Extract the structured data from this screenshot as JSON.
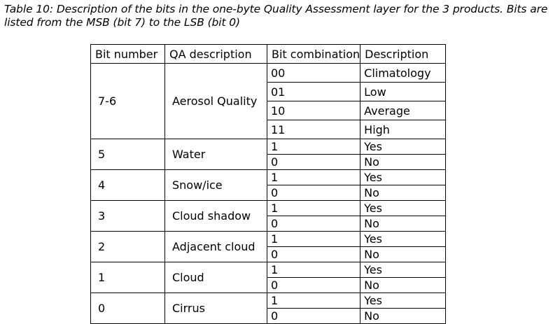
{
  "caption": "Table 10: Description of the bits in the one-byte Quality Assessment layer for the 3 products. Bits are listed from the MSB (bit 7) to the LSB (bit 0)",
  "table": {
    "headers": [
      "Bit number",
      "QA description",
      "Bit combination",
      "Description"
    ],
    "groups": [
      {
        "bit": "7-6",
        "qa": "Aerosol Quality",
        "rows": [
          {
            "code": "00",
            "desc": "Climatology"
          },
          {
            "code": "01",
            "desc": "Low"
          },
          {
            "code": "10",
            "desc": "Average"
          },
          {
            "code": "11",
            "desc": "High"
          }
        ]
      },
      {
        "bit": "5",
        "qa": "Water",
        "rows": [
          {
            "code": "1",
            "desc": "Yes"
          },
          {
            "code": "0",
            "desc": "No"
          }
        ]
      },
      {
        "bit": "4",
        "qa": "Snow/ice",
        "rows": [
          {
            "code": "1",
            "desc": "Yes"
          },
          {
            "code": "0",
            "desc": "No"
          }
        ]
      },
      {
        "bit": "3",
        "qa": "Cloud shadow",
        "rows": [
          {
            "code": "1",
            "desc": "Yes"
          },
          {
            "code": "0",
            "desc": "No"
          }
        ]
      },
      {
        "bit": "2",
        "qa": "Adjacent cloud",
        "rows": [
          {
            "code": "1",
            "desc": "Yes"
          },
          {
            "code": "0",
            "desc": "No"
          }
        ]
      },
      {
        "bit": "1",
        "qa": "Cloud",
        "rows": [
          {
            "code": "1",
            "desc": "Yes"
          },
          {
            "code": "0",
            "desc": "No"
          }
        ]
      },
      {
        "bit": "0",
        "qa": "Cirrus",
        "rows": [
          {
            "code": "1",
            "desc": "Yes"
          },
          {
            "code": "0",
            "desc": "No"
          }
        ]
      }
    ]
  }
}
